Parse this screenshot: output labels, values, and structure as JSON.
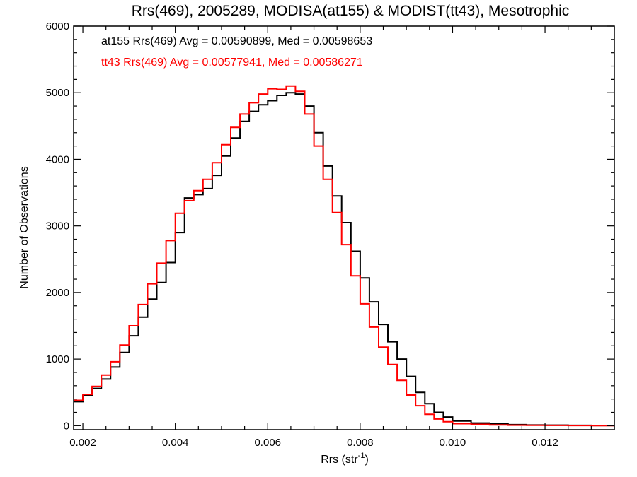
{
  "chart_data": {
    "type": "line",
    "title": "Rrs(469), 2005289, MODISA(at155) & MODIST(tt43), Mesotrophic",
    "xlabel_main": "Rrs (str",
    "xlabel_sup": "-1",
    "xlabel_close": ")",
    "ylabel": "Number of Observations",
    "xlim": [
      0.0018,
      0.0135
    ],
    "ylim": [
      -60,
      6000
    ],
    "xticks": [
      0.002,
      0.004,
      0.006,
      0.008,
      0.01,
      0.012
    ],
    "xtick_labels": [
      "0.002",
      "0.004",
      "0.006",
      "0.008",
      "0.010",
      "0.012"
    ],
    "yticks": [
      0,
      1000,
      2000,
      3000,
      4000,
      5000,
      6000
    ],
    "ytick_labels": [
      "0",
      "1000",
      "2000",
      "3000",
      "4000",
      "5000",
      "6000"
    ],
    "grid": false,
    "legend_placement": "top-left",
    "series": [
      {
        "name": "at155",
        "legend_text": "at155 Rrs(469) Avg = 0.00590899, Med = 0.00598653",
        "color": "#000000",
        "x": [
          0.0018,
          0.002,
          0.0022,
          0.0024,
          0.0026,
          0.0028,
          0.003,
          0.0032,
          0.0034,
          0.0036,
          0.0038,
          0.004,
          0.0042,
          0.0044,
          0.0046,
          0.0048,
          0.005,
          0.0052,
          0.0054,
          0.0056,
          0.0058,
          0.006,
          0.0062,
          0.0064,
          0.0066,
          0.0068,
          0.007,
          0.0072,
          0.0074,
          0.0076,
          0.0078,
          0.008,
          0.0082,
          0.0084,
          0.0086,
          0.0088,
          0.009,
          0.0092,
          0.0094,
          0.0096,
          0.0098,
          0.01,
          0.0104,
          0.0108,
          0.0112,
          0.0116,
          0.012,
          0.0125,
          0.013,
          0.0135
        ],
        "y": [
          360,
          450,
          560,
          700,
          880,
          1100,
          1350,
          1630,
          1900,
          2150,
          2450,
          2900,
          3420,
          3470,
          3560,
          3760,
          4050,
          4320,
          4570,
          4720,
          4820,
          4880,
          4960,
          5000,
          4980,
          4800,
          4400,
          3900,
          3450,
          3050,
          2620,
          2220,
          1860,
          1520,
          1260,
          1000,
          740,
          500,
          330,
          200,
          130,
          70,
          40,
          25,
          15,
          10,
          8,
          5,
          3,
          2
        ]
      },
      {
        "name": "tt43",
        "legend_text": "tt43 Rrs(469) Avg = 0.00577941, Med = 0.00586271",
        "color": "#ff0000",
        "x": [
          0.0018,
          0.002,
          0.0022,
          0.0024,
          0.0026,
          0.0028,
          0.003,
          0.0032,
          0.0034,
          0.0036,
          0.0038,
          0.004,
          0.0042,
          0.0044,
          0.0046,
          0.0048,
          0.005,
          0.0052,
          0.0054,
          0.0056,
          0.0058,
          0.006,
          0.0062,
          0.0064,
          0.0066,
          0.0068,
          0.007,
          0.0072,
          0.0074,
          0.0076,
          0.0078,
          0.008,
          0.0082,
          0.0084,
          0.0086,
          0.0088,
          0.009,
          0.0092,
          0.0094,
          0.0096,
          0.0098,
          0.01,
          0.0104,
          0.0108,
          0.0112,
          0.0116,
          0.012,
          0.0125,
          0.013,
          0.0135
        ],
        "y": [
          380,
          470,
          590,
          760,
          960,
          1210,
          1500,
          1820,
          2130,
          2440,
          2780,
          3190,
          3380,
          3530,
          3700,
          3950,
          4220,
          4480,
          4680,
          4850,
          4980,
          5060,
          5050,
          5100,
          5020,
          4680,
          4200,
          3700,
          3200,
          2720,
          2250,
          1830,
          1480,
          1180,
          920,
          680,
          460,
          300,
          170,
          100,
          60,
          30,
          20,
          12,
          8,
          6,
          5,
          3,
          2,
          2
        ]
      }
    ]
  }
}
